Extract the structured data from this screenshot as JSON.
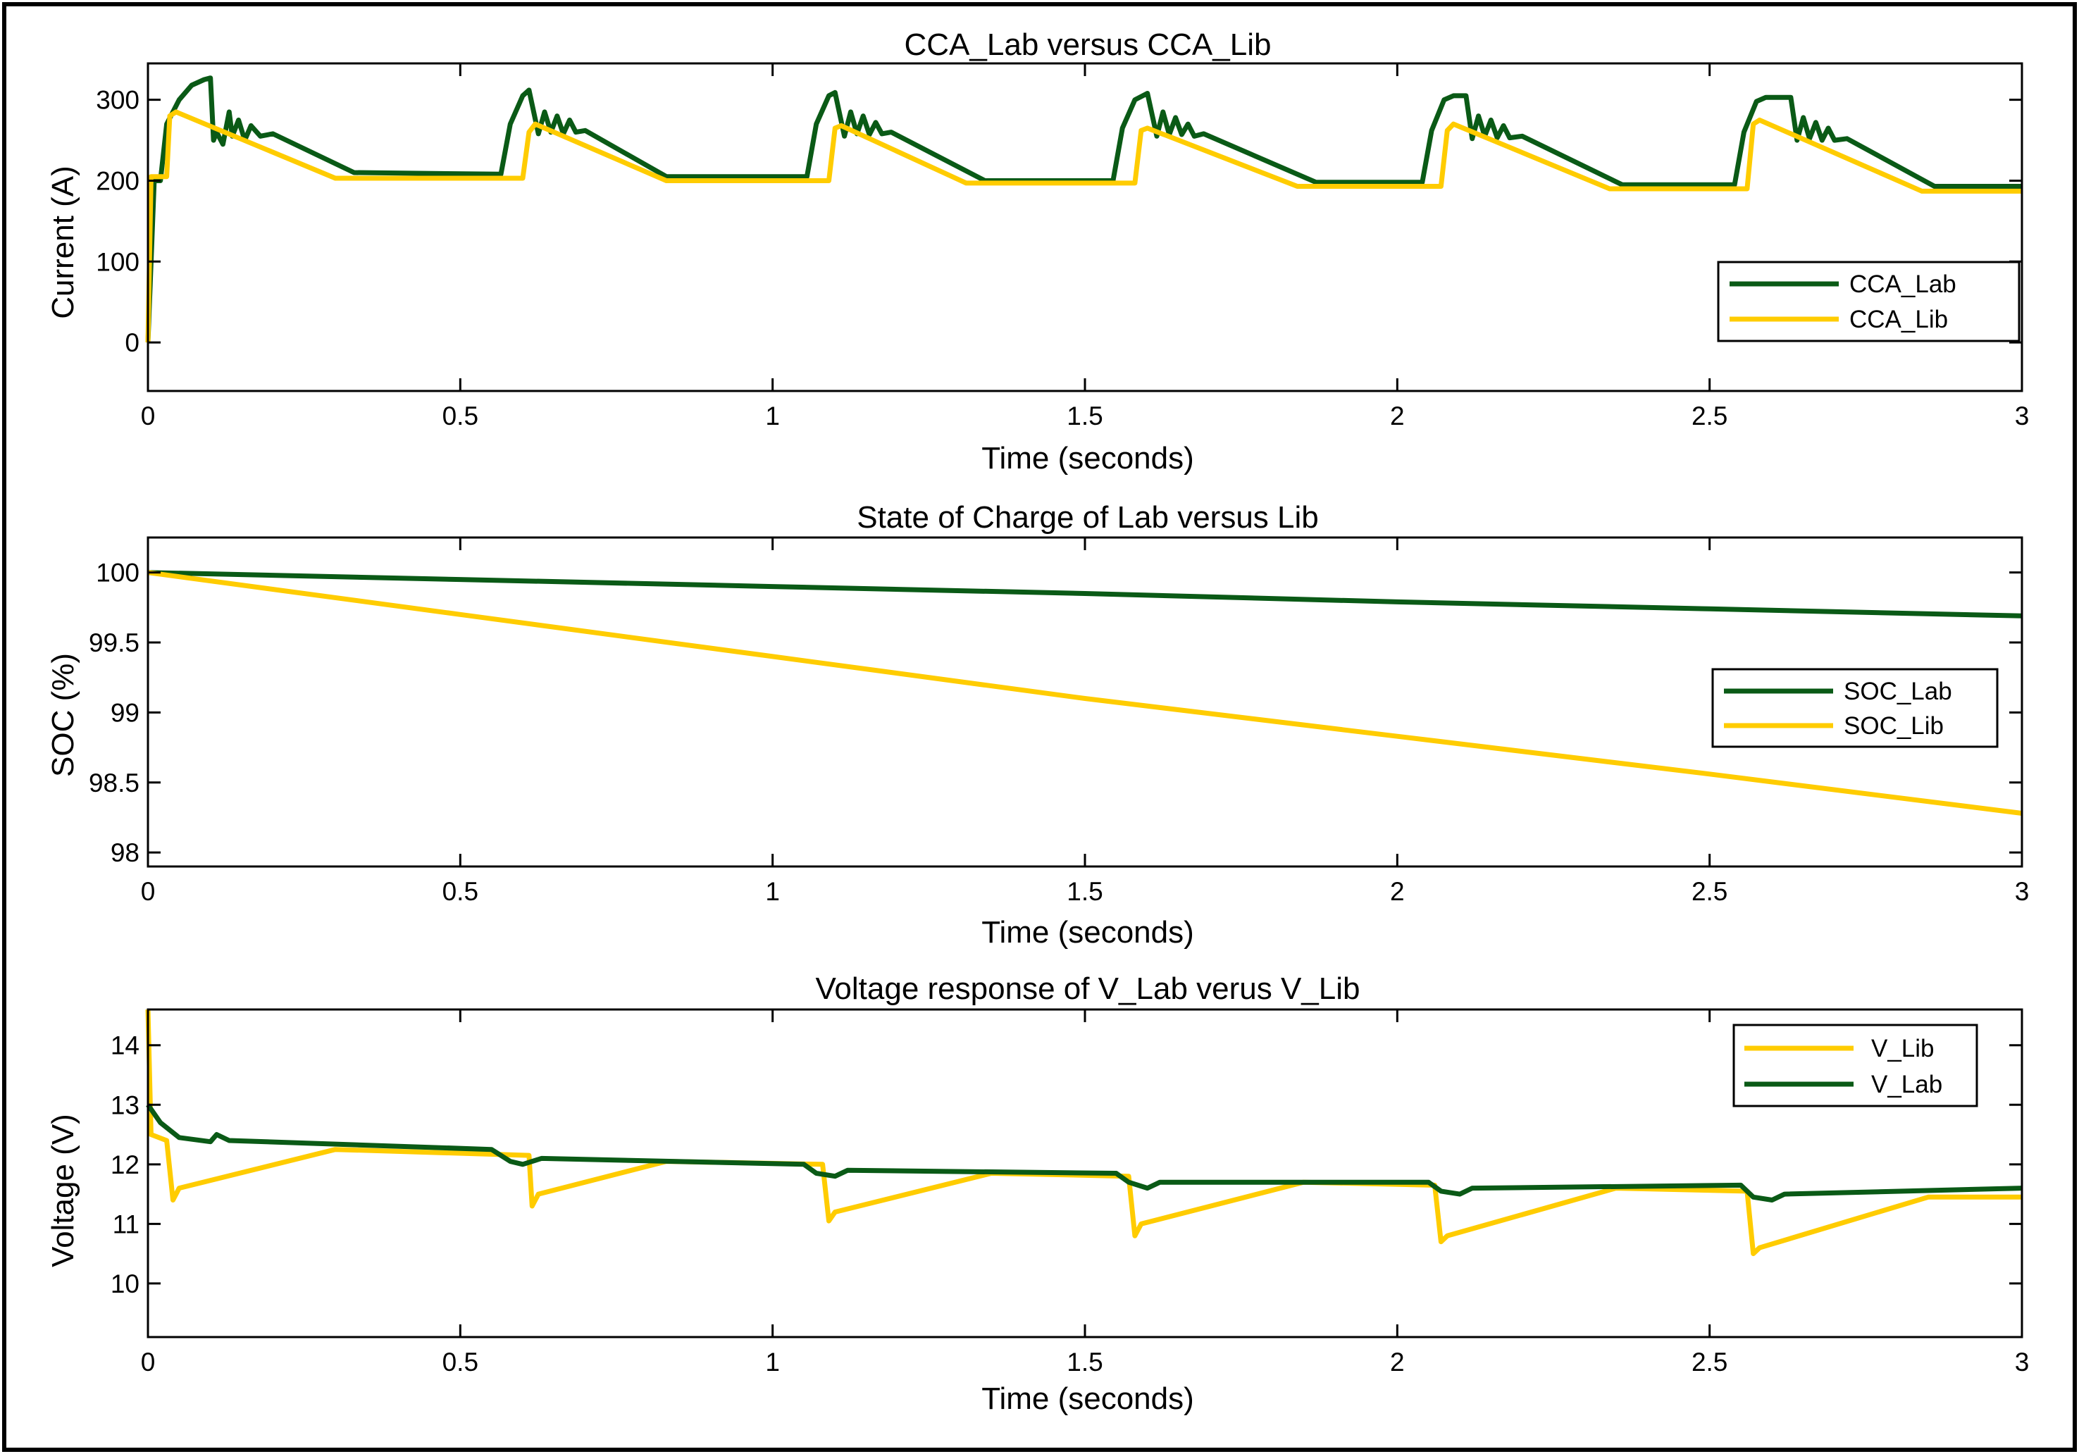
{
  "chart_data": [
    {
      "type": "line",
      "title": "CCA_Lab versus CCA_Lib",
      "xlabel": "Time (seconds)",
      "ylabel": "Current (A)",
      "xlim": [
        0,
        3
      ],
      "ylim": [
        -60,
        345
      ],
      "xticks": [
        0,
        0.5,
        1,
        1.5,
        2,
        2.5,
        3
      ],
      "xtick_labels": [
        "0",
        "0.5",
        "1",
        "1.5",
        "2",
        "2.5",
        "3"
      ],
      "yticks": [
        0,
        100,
        200,
        300
      ],
      "ytick_labels": [
        "0",
        "100",
        "200",
        "300"
      ],
      "legend_position": "right",
      "series": [
        {
          "name": "CCA_Lab",
          "color": "#0a5a16",
          "points": [
            [
              0,
              0
            ],
            [
              0.01,
              200
            ],
            [
              0.02,
              200
            ],
            [
              0.03,
              270
            ],
            [
              0.05,
              300
            ],
            [
              0.07,
              318
            ],
            [
              0.09,
              325
            ],
            [
              0.1,
              327
            ],
            [
              0.105,
              250
            ],
            [
              0.11,
              260
            ],
            [
              0.12,
              245
            ],
            [
              0.13,
              285
            ],
            [
              0.135,
              255
            ],
            [
              0.145,
              275
            ],
            [
              0.155,
              250
            ],
            [
              0.165,
              268
            ],
            [
              0.18,
              255
            ],
            [
              0.2,
              258
            ],
            [
              0.33,
              210
            ],
            [
              0.565,
              208
            ],
            [
              0.58,
              270
            ],
            [
              0.6,
              305
            ],
            [
              0.61,
              312
            ],
            [
              0.625,
              258
            ],
            [
              0.635,
              285
            ],
            [
              0.645,
              260
            ],
            [
              0.655,
              280
            ],
            [
              0.665,
              258
            ],
            [
              0.675,
              275
            ],
            [
              0.685,
              260
            ],
            [
              0.7,
              262
            ],
            [
              0.83,
              205
            ],
            [
              1.055,
              205
            ],
            [
              1.07,
              270
            ],
            [
              1.09,
              305
            ],
            [
              1.1,
              309
            ],
            [
              1.115,
              255
            ],
            [
              1.125,
              285
            ],
            [
              1.135,
              258
            ],
            [
              1.145,
              280
            ],
            [
              1.155,
              257
            ],
            [
              1.165,
              272
            ],
            [
              1.175,
              258
            ],
            [
              1.19,
              260
            ],
            [
              1.34,
              200
            ],
            [
              1.545,
              200
            ],
            [
              1.56,
              265
            ],
            [
              1.58,
              300
            ],
            [
              1.6,
              308
            ],
            [
              1.615,
              255
            ],
            [
              1.625,
              285
            ],
            [
              1.635,
              257
            ],
            [
              1.645,
              278
            ],
            [
              1.655,
              257
            ],
            [
              1.665,
              270
            ],
            [
              1.675,
              255
            ],
            [
              1.69,
              258
            ],
            [
              1.87,
              198
            ],
            [
              2.04,
              198
            ],
            [
              2.055,
              262
            ],
            [
              2.075,
              300
            ],
            [
              2.09,
              305
            ],
            [
              2.11,
              305
            ],
            [
              2.12,
              252
            ],
            [
              2.13,
              280
            ],
            [
              2.14,
              255
            ],
            [
              2.15,
              275
            ],
            [
              2.16,
              253
            ],
            [
              2.17,
              268
            ],
            [
              2.18,
              253
            ],
            [
              2.2,
              255
            ],
            [
              2.36,
              195
            ],
            [
              2.54,
              195
            ],
            [
              2.555,
              260
            ],
            [
              2.575,
              298
            ],
            [
              2.59,
              303
            ],
            [
              2.63,
              303
            ],
            [
              2.64,
              250
            ],
            [
              2.65,
              278
            ],
            [
              2.66,
              252
            ],
            [
              2.67,
              272
            ],
            [
              2.68,
              250
            ],
            [
              2.69,
              265
            ],
            [
              2.7,
              250
            ],
            [
              2.72,
              252
            ],
            [
              2.86,
              193
            ],
            [
              3,
              193
            ]
          ]
        },
        {
          "name": "CCA_Lib",
          "color": "#ffcc00",
          "points": [
            [
              0,
              0
            ],
            [
              0.005,
              205
            ],
            [
              0.03,
              205
            ],
            [
              0.035,
              280
            ],
            [
              0.045,
              285
            ],
            [
              0.3,
              203
            ],
            [
              0.6,
              203
            ],
            [
              0.61,
              260
            ],
            [
              0.62,
              270
            ],
            [
              0.83,
              200
            ],
            [
              1.09,
              200
            ],
            [
              1.1,
              265
            ],
            [
              1.11,
              268
            ],
            [
              1.31,
              197
            ],
            [
              1.58,
              197
            ],
            [
              1.59,
              262
            ],
            [
              1.6,
              265
            ],
            [
              1.84,
              193
            ],
            [
              2.07,
              193
            ],
            [
              2.08,
              262
            ],
            [
              2.09,
              270
            ],
            [
              2.34,
              190
            ],
            [
              2.56,
              190
            ],
            [
              2.57,
              270
            ],
            [
              2.58,
              275
            ],
            [
              2.84,
              187
            ],
            [
              3,
              187
            ]
          ]
        }
      ]
    },
    {
      "type": "line",
      "title": "State of Charge of Lab versus Lib",
      "xlabel": "Time (seconds)",
      "ylabel": "SOC (%)",
      "xlim": [
        0,
        3
      ],
      "ylim": [
        97.9,
        100.25
      ],
      "xticks": [
        0,
        0.5,
        1,
        1.5,
        2,
        2.5,
        3
      ],
      "xtick_labels": [
        "0",
        "0.5",
        "1",
        "1.5",
        "2",
        "2.5",
        "3"
      ],
      "yticks": [
        98,
        98.5,
        99,
        99.5,
        100
      ],
      "ytick_labels": [
        "98",
        "98.5",
        "99",
        "99.5",
        "100"
      ],
      "legend_position": "right",
      "series": [
        {
          "name": "SOC_Lab",
          "color": "#0a5a16",
          "points": [
            [
              0,
              100
            ],
            [
              0.5,
              99.95
            ],
            [
              1,
              99.9
            ],
            [
              1.5,
              99.85
            ],
            [
              2,
              99.79
            ],
            [
              2.5,
              99.74
            ],
            [
              3,
              99.69
            ]
          ]
        },
        {
          "name": "SOC_Lib",
          "color": "#ffcc00",
          "points": [
            [
              0,
              100
            ],
            [
              0.5,
              99.7
            ],
            [
              1,
              99.4
            ],
            [
              1.5,
              99.1
            ],
            [
              2,
              98.83
            ],
            [
              2.5,
              98.56
            ],
            [
              3,
              98.28
            ]
          ]
        }
      ]
    },
    {
      "type": "line",
      "title": "Voltage response of V_Lab verus V_Lib",
      "xlabel": "Time (seconds)",
      "ylabel": "Voltage (V)",
      "xlim": [
        0,
        3
      ],
      "ylim": [
        9.1,
        14.6
      ],
      "xticks": [
        0,
        0.5,
        1,
        1.5,
        2,
        2.5,
        3
      ],
      "xtick_labels": [
        "0",
        "0.5",
        "1",
        "1.5",
        "2",
        "2.5",
        "3"
      ],
      "yticks": [
        10,
        11,
        12,
        13,
        14
      ],
      "ytick_labels": [
        "10",
        "11",
        "12",
        "13",
        "14"
      ],
      "legend_position": "top-right",
      "series": [
        {
          "name": "V_Lib",
          "color": "#ffcc00",
          "points": [
            [
              0,
              14.6
            ],
            [
              0.005,
              12.5
            ],
            [
              0.03,
              12.4
            ],
            [
              0.04,
              11.4
            ],
            [
              0.05,
              11.6
            ],
            [
              0.3,
              12.25
            ],
            [
              0.61,
              12.15
            ],
            [
              0.615,
              11.3
            ],
            [
              0.625,
              11.5
            ],
            [
              0.83,
              12.05
            ],
            [
              1.08,
              12.0
            ],
            [
              1.09,
              11.05
            ],
            [
              1.1,
              11.2
            ],
            [
              1.35,
              11.85
            ],
            [
              1.57,
              11.8
            ],
            [
              1.58,
              10.8
            ],
            [
              1.59,
              11.0
            ],
            [
              1.85,
              11.7
            ],
            [
              2.06,
              11.65
            ],
            [
              2.07,
              10.7
            ],
            [
              2.08,
              10.8
            ],
            [
              2.35,
              11.6
            ],
            [
              2.56,
              11.55
            ],
            [
              2.57,
              10.5
            ],
            [
              2.58,
              10.6
            ],
            [
              2.85,
              11.45
            ],
            [
              3,
              11.45
            ]
          ]
        },
        {
          "name": "V_Lab",
          "color": "#0a5a16",
          "points": [
            [
              0,
              13.0
            ],
            [
              0.02,
              12.7
            ],
            [
              0.05,
              12.45
            ],
            [
              0.1,
              12.38
            ],
            [
              0.11,
              12.5
            ],
            [
              0.13,
              12.4
            ],
            [
              0.55,
              12.25
            ],
            [
              0.58,
              12.05
            ],
            [
              0.6,
              12.0
            ],
            [
              0.63,
              12.1
            ],
            [
              1.05,
              12.0
            ],
            [
              1.07,
              11.85
            ],
            [
              1.1,
              11.8
            ],
            [
              1.12,
              11.9
            ],
            [
              1.55,
              11.85
            ],
            [
              1.57,
              11.7
            ],
            [
              1.6,
              11.6
            ],
            [
              1.62,
              11.7
            ],
            [
              2.05,
              11.7
            ],
            [
              2.07,
              11.55
            ],
            [
              2.1,
              11.5
            ],
            [
              2.12,
              11.6
            ],
            [
              2.55,
              11.65
            ],
            [
              2.57,
              11.45
            ],
            [
              2.6,
              11.4
            ],
            [
              2.62,
              11.5
            ],
            [
              3,
              11.6
            ]
          ]
        }
      ]
    }
  ]
}
